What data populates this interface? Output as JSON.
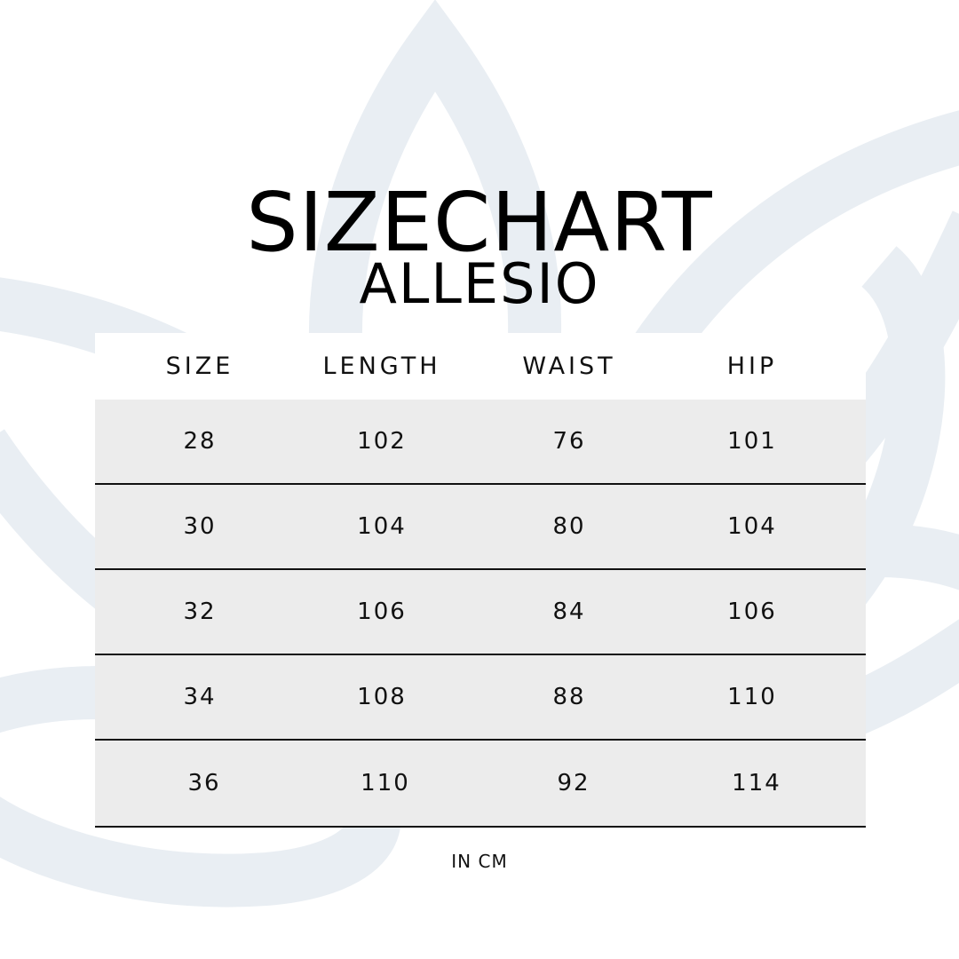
{
  "title": "SIZECHART",
  "subtitle": "ALLESIO",
  "background_shape_color": "#e9eef3",
  "row_color": "#ececec",
  "table": {
    "headers": [
      "SIZE",
      "LENGTH",
      "WAIST",
      "HIP"
    ],
    "rows": [
      [
        "28",
        "102",
        "76",
        "101"
      ],
      [
        "30",
        "104",
        "80",
        "104"
      ],
      [
        "32",
        "106",
        "84",
        "106"
      ],
      [
        "34",
        "108",
        "88",
        "110"
      ],
      [
        "36",
        "110",
        "92",
        "114"
      ]
    ]
  },
  "unit_note": "IN CM"
}
